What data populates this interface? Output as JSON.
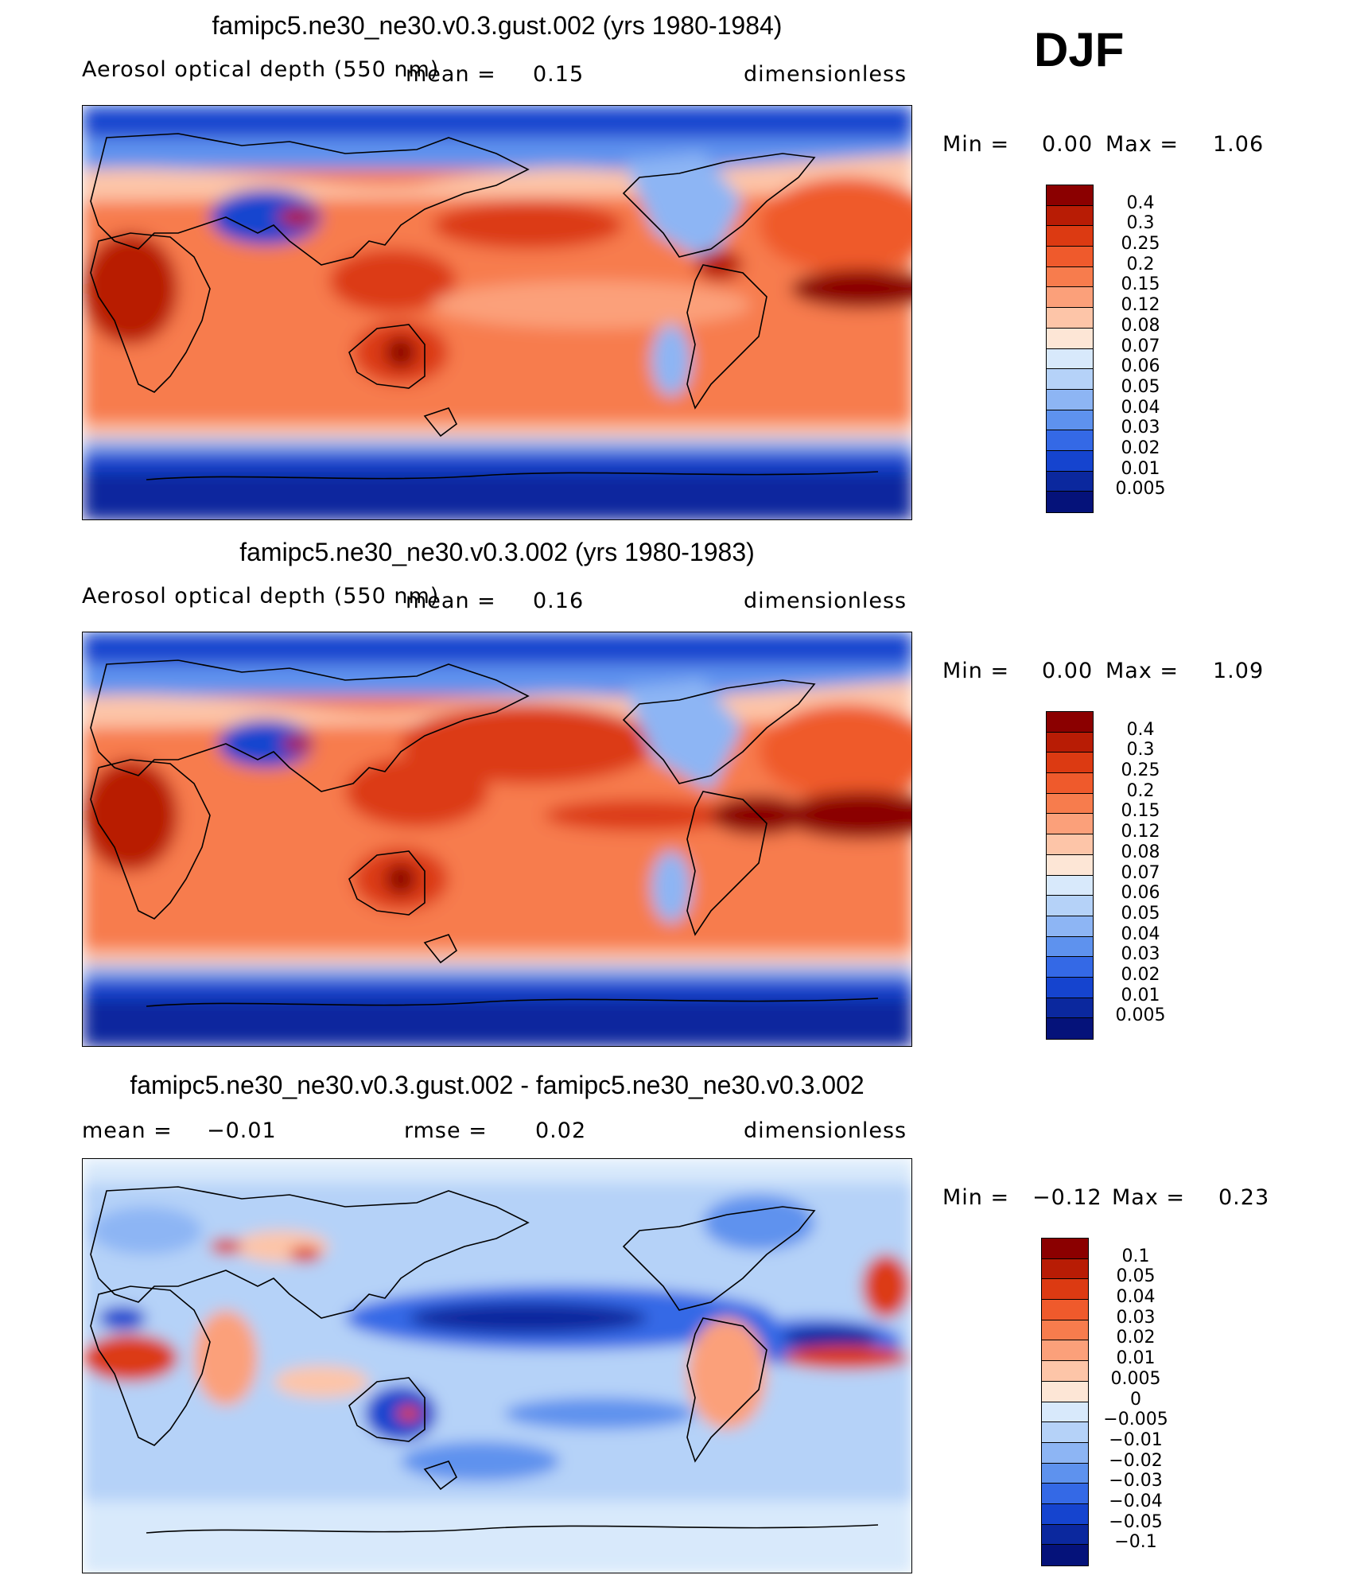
{
  "season": "DJF",
  "panels": [
    {
      "title": "famipc5.ne30_ne30.v0.3.gust.002 (yrs 1980-1984)",
      "variable": "Aerosol optical depth (550 nm)",
      "mean_label": "mean =",
      "mean_value": "0.15",
      "units": "dimensionless",
      "min_label": "Min =",
      "min_value": "0.00",
      "max_label": "Max =",
      "max_value": "1.06"
    },
    {
      "title": "famipc5.ne30_ne30.v0.3.002 (yrs 1980-1983)",
      "variable": "Aerosol optical depth (550 nm)",
      "mean_label": "mean =",
      "mean_value": "0.16",
      "units": "dimensionless",
      "min_label": "Min =",
      "min_value": "0.00",
      "max_label": "Max =",
      "max_value": "1.09"
    },
    {
      "title": "famipc5.ne30_ne30.v0.3.gust.002 - famipc5.ne30_ne30.v0.3.002",
      "mean_label": "mean =",
      "mean_value": "−0.01",
      "rmse_label": "rmse =",
      "rmse_value": "0.02",
      "units": "dimensionless",
      "min_label": "Min =",
      "min_value": "−0.12",
      "max_label": "Max =",
      "max_value": "0.23"
    }
  ],
  "chart_data": [
    {
      "type": "heatmap",
      "title": "famipc5.ne30_ne30.v0.3.gust.002 (yrs 1980-1984)",
      "subtitle": "Aerosol optical depth (550 nm)",
      "mean": 0.15,
      "min": 0.0,
      "max": 1.06,
      "units": "dimensionless",
      "colorbar_levels": [
        "0.4",
        "0.3",
        "0.25",
        "0.2",
        "0.15",
        "0.12",
        "0.08",
        "0.07",
        "0.06",
        "0.05",
        "0.04",
        "0.03",
        "0.02",
        "0.01",
        "0.005"
      ],
      "colorbar_colors": [
        "#8b0000",
        "#b81c05",
        "#dc3a12",
        "#ef5a2c",
        "#f77c4d",
        "#fba07a",
        "#fdc5a8",
        "#fde6d6",
        "#d8e9fb",
        "#b5d2f8",
        "#8db5f4",
        "#5e92ee",
        "#3469e6",
        "#1544cf",
        "#0b289e",
        "#05127a"
      ]
    },
    {
      "type": "heatmap",
      "title": "famipc5.ne30_ne30.v0.3.002 (yrs 1980-1983)",
      "subtitle": "Aerosol optical depth (550 nm)",
      "mean": 0.16,
      "min": 0.0,
      "max": 1.09,
      "units": "dimensionless",
      "colorbar_levels": [
        "0.4",
        "0.3",
        "0.25",
        "0.2",
        "0.15",
        "0.12",
        "0.08",
        "0.07",
        "0.06",
        "0.05",
        "0.04",
        "0.03",
        "0.02",
        "0.01",
        "0.005"
      ],
      "colorbar_colors": [
        "#8b0000",
        "#b81c05",
        "#dc3a12",
        "#ef5a2c",
        "#f77c4d",
        "#fba07a",
        "#fdc5a8",
        "#fde6d6",
        "#d8e9fb",
        "#b5d2f8",
        "#8db5f4",
        "#5e92ee",
        "#3469e6",
        "#1544cf",
        "#0b289e",
        "#05127a"
      ]
    },
    {
      "type": "heatmap",
      "title": "famipc5.ne30_ne30.v0.3.gust.002 - famipc5.ne30_ne30.v0.3.002",
      "mean": -0.01,
      "rmse": 0.02,
      "min": -0.12,
      "max": 0.23,
      "units": "dimensionless",
      "colorbar_levels": [
        "0.1",
        "0.05",
        "0.04",
        "0.03",
        "0.02",
        "0.01",
        "0.005",
        "0",
        "−0.005",
        "−0.01",
        "−0.02",
        "−0.03",
        "−0.04",
        "−0.05",
        "−0.1"
      ],
      "colorbar_colors": [
        "#8b0000",
        "#b81c05",
        "#dc3a12",
        "#ef5a2c",
        "#f77c4d",
        "#fba07a",
        "#fdc5a8",
        "#fde6d6",
        "#d8e9fb",
        "#b5d2f8",
        "#8db5f4",
        "#5e92ee",
        "#3469e6",
        "#1544cf",
        "#0b289e",
        "#05127a"
      ]
    }
  ]
}
